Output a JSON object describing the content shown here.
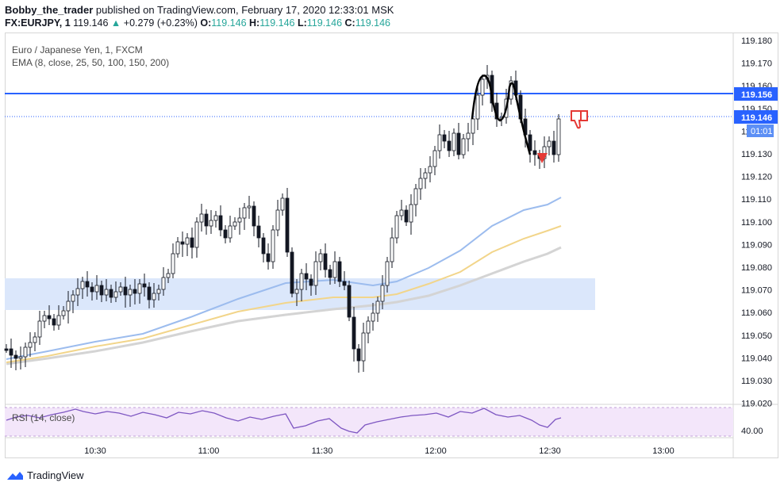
{
  "header": {
    "author": "Bobby_the_trader",
    "published_text": "published on TradingView.com, February 17, 2020 12:33:01 MSK"
  },
  "symbol_bar": {
    "symbol": "FX:EURJPY, 1",
    "last": "119.146",
    "change": "+0.279 (+0.23%)",
    "o_label": "O:",
    "o_value": "119.146",
    "h_label": "H:",
    "h_value": "119.146",
    "l_label": "L:",
    "l_value": "119.146",
    "c_label": "C:",
    "c_value": "119.146"
  },
  "legend": {
    "instrument": "Euro / Japanese Yen, 1, FXCM",
    "ema": "EMA (8, close, 25, 50, 100, 150, 200)"
  },
  "price_axis": {
    "ticks": [
      "119.180",
      "119.170",
      "119.160",
      "119.150",
      "119.140",
      "119.130",
      "119.120",
      "119.110",
      "119.100",
      "119.090",
      "119.080",
      "119.070",
      "119.060",
      "119.050",
      "119.040",
      "119.030",
      "119.020"
    ],
    "level_label": "119.156",
    "last_label": "119.146",
    "countdown_label": "01:01"
  },
  "rsi": {
    "label": "RSI (14, close)",
    "tick": "40.00"
  },
  "time_axis": {
    "ticks": [
      "10:30",
      "11:00",
      "11:30",
      "12:00",
      "12:30",
      "13:00"
    ]
  },
  "colors": {
    "up": "#ffffff",
    "down": "#131722",
    "level_line": "#2962ff",
    "ema_fast": "#9cbcee",
    "ema_mid": "#f2d58a",
    "ema_slow": "#d4d4d4",
    "zone": "#dbe7fb",
    "rsi_fill": "#f3e6fa",
    "rsi_line": "#7e57c2",
    "thumb": "#e53935"
  },
  "footer": {
    "brand": "TradingView"
  }
}
